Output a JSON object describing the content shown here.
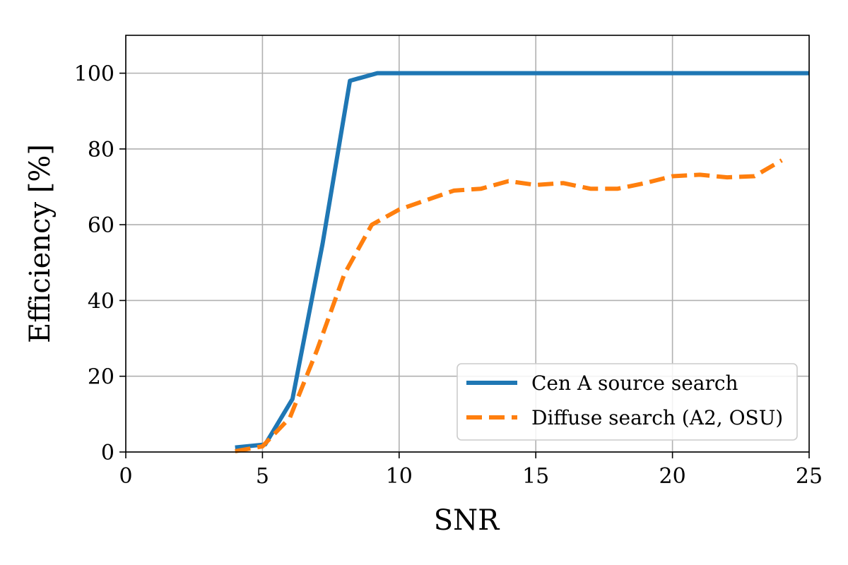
{
  "chart_data": {
    "type": "line",
    "title": "",
    "xlabel": "SNR",
    "ylabel": "Efficiency [%]",
    "xlim": [
      0,
      25
    ],
    "ylim": [
      0,
      110
    ],
    "xticks": [
      0,
      5,
      10,
      15,
      20,
      25
    ],
    "yticks": [
      0,
      20,
      40,
      60,
      80,
      100
    ],
    "grid": true,
    "legend_position": "bottom-right",
    "series": [
      {
        "name": "Cen A source search",
        "color": "#1f77b4",
        "style": "solid",
        "x": [
          4,
          5.1,
          6.1,
          7.2,
          8.2,
          9.2,
          10,
          15,
          20,
          25
        ],
        "y": [
          1.2,
          2,
          14,
          55,
          98,
          100,
          100,
          100,
          100,
          100
        ]
      },
      {
        "name": "Diffuse search (A2, OSU)",
        "color": "#ff7f0e",
        "style": "dashed",
        "x": [
          4,
          5,
          6,
          7,
          8,
          9,
          10,
          11,
          12,
          13,
          14,
          15,
          16,
          17,
          18,
          19,
          20,
          21,
          22,
          23,
          24
        ],
        "y": [
          0.2,
          1.5,
          9,
          27,
          47,
          60,
          64,
          66.5,
          69,
          69.5,
          71.5,
          70.5,
          71,
          69.5,
          69.5,
          71,
          72.8,
          73.2,
          72.5,
          72.8,
          77
        ]
      }
    ]
  }
}
